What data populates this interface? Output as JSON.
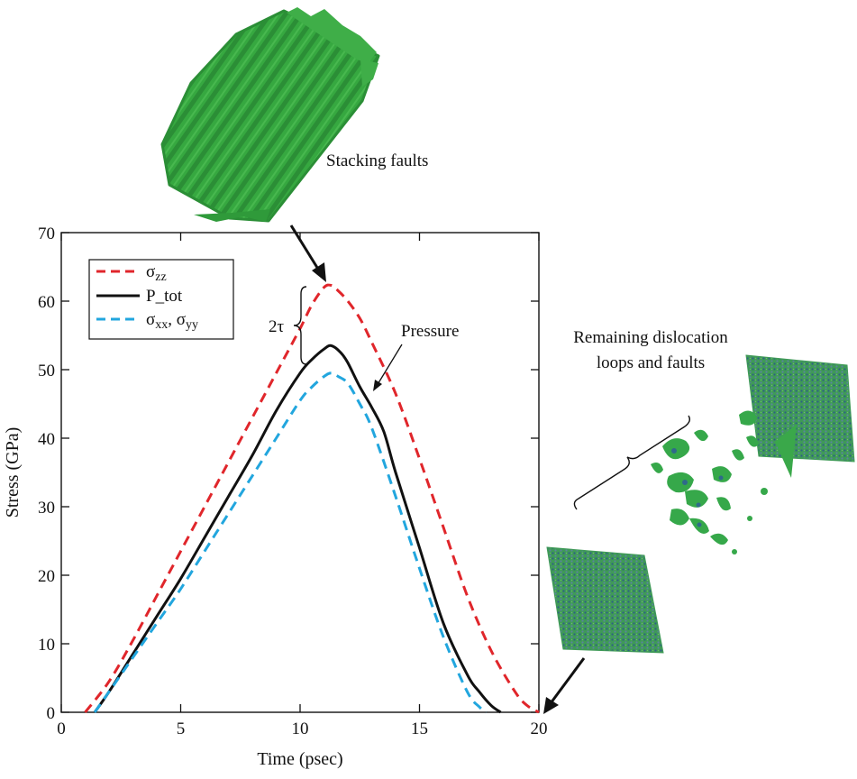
{
  "chart_data": {
    "type": "line",
    "xlabel": "Time (psec)",
    "ylabel": "Stress (GPa)",
    "xlim": [
      0,
      20
    ],
    "ylim": [
      0,
      70
    ],
    "xticks": [
      "0",
      "5",
      "10",
      "15",
      "20"
    ],
    "yticks": [
      "0",
      "10",
      "20",
      "30",
      "40",
      "50",
      "60",
      "70"
    ],
    "grid": false,
    "legend_position": "top-left",
    "series": [
      {
        "name": "σzz",
        "color": "#e0262b",
        "style": "dashed",
        "x": [
          1.0,
          2.0,
          3.0,
          4.0,
          5.0,
          6.0,
          7.0,
          8.0,
          9.0,
          10.0,
          10.5,
          11.0,
          11.3,
          11.6,
          12.0,
          12.5,
          13.0,
          14.0,
          15.0,
          16.0,
          17.0,
          18.0,
          19.0,
          19.5,
          20.0
        ],
        "y": [
          0,
          4.5,
          10.5,
          17,
          23.5,
          30,
          36.5,
          43,
          49.5,
          56,
          59.5,
          62,
          62.3,
          61.5,
          60,
          57.5,
          54,
          46.5,
          37,
          27,
          17,
          9,
          3,
          1,
          0
        ]
      },
      {
        "name": "P_tot",
        "color": "#111111",
        "style": "solid",
        "x": [
          1.4,
          2.0,
          3.0,
          4.0,
          5.0,
          6.0,
          7.0,
          8.0,
          9.0,
          10.0,
          10.5,
          11.0,
          11.3,
          11.7,
          12.0,
          12.5,
          13.0,
          13.5,
          14.0,
          15.0,
          16.0,
          17.0,
          17.5,
          18.0,
          18.4
        ],
        "y": [
          0,
          3,
          8.5,
          14,
          19.5,
          25.5,
          31.5,
          37.5,
          44,
          49.5,
          51.5,
          53,
          53.5,
          52.5,
          51,
          47.5,
          44.5,
          41,
          35,
          24,
          13,
          5.5,
          3,
          1,
          0
        ]
      },
      {
        "name": "σxx, σyy",
        "color": "#22a6de",
        "style": "dashed",
        "x": [
          1.4,
          2.0,
          3.0,
          4.0,
          5.0,
          6.0,
          7.0,
          8.0,
          9.0,
          10.0,
          10.5,
          11.0,
          11.3,
          11.6,
          12.0,
          12.5,
          13.0,
          14.0,
          15.0,
          16.0,
          17.0,
          17.5,
          17.8
        ],
        "y": [
          0,
          3,
          8,
          13,
          18,
          23.5,
          29,
          34.5,
          40,
          45.5,
          47.5,
          49,
          49.5,
          49,
          48,
          45,
          41.5,
          31.5,
          21,
          11,
          3,
          0.8,
          0
        ]
      }
    ],
    "annotations": {
      "stacking_faults": "Stacking faults",
      "pressure": "Pressure",
      "two_tau": "2τ",
      "remaining_line1": "Remaining dislocation",
      "remaining_line2": "loops and faults"
    },
    "legend": {
      "szz_sym": "σ",
      "szz_sub": "zz",
      "ptot": "P_tot",
      "sxx_sym1": "σ",
      "sxx_sub1": "xx",
      "sxx_comma": ", ",
      "sxx_sym2": "σ",
      "sxx_sub2": "yy"
    },
    "image_colors": {
      "fault_green": "#2fa23a",
      "fault_green_dark": "#1c7d2a",
      "lattice_blue": "#4a7a95"
    }
  }
}
